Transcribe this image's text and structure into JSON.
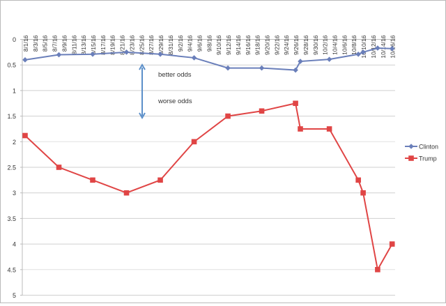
{
  "chart_data": {
    "type": "line",
    "title": "",
    "xlabel": "",
    "ylabel": "",
    "ylim": [
      0,
      5
    ],
    "y_inverted": true,
    "y_ticks": [
      "0",
      "0.5",
      "1",
      "1.5",
      "2",
      "2.5",
      "3",
      "3.5",
      "4",
      "4.5",
      "5"
    ],
    "x_tick_labels": [
      "8/1/16",
      "8/3/16",
      "8/5/16",
      "8/7/16",
      "8/9/16",
      "8/11/16",
      "8/13/16",
      "8/15/16",
      "8/17/16",
      "8/19/16",
      "8/21/16",
      "8/23/16",
      "8/25/16",
      "8/27/16",
      "8/29/16",
      "8/31/16",
      "9/2/16",
      "9/4/16",
      "9/6/16",
      "9/8/16",
      "9/10/16",
      "9/12/16",
      "9/14/16",
      "9/16/16",
      "9/18/16",
      "9/20/16",
      "9/22/16",
      "9/24/16",
      "9/26/16",
      "9/28/16",
      "9/30/16",
      "10/2/16",
      "10/4/16",
      "10/6/16",
      "10/8/16",
      "10/10/16",
      "10/12/16",
      "10/14/16",
      "10/16/16"
    ],
    "grid": true,
    "legend_position": "right",
    "series": [
      {
        "name": "Clinton",
        "color": "#6a7fba",
        "marker": "diamond",
        "points": [
          {
            "x": "8/1/16",
            "day": 0,
            "y": 0.4
          },
          {
            "x": "8/8/16",
            "day": 7,
            "y": 0.3
          },
          {
            "x": "8/15/16",
            "day": 14,
            "y": 0.29
          },
          {
            "x": "8/22/16",
            "day": 21,
            "y": 0.25
          },
          {
            "x": "8/29/16",
            "day": 28,
            "y": 0.29
          },
          {
            "x": "9/5/16",
            "day": 35,
            "y": 0.36
          },
          {
            "x": "9/12/16",
            "day": 42,
            "y": 0.56
          },
          {
            "x": "9/19/16",
            "day": 49,
            "y": 0.56
          },
          {
            "x": "9/26/16",
            "day": 56,
            "y": 0.6
          },
          {
            "x": "9/27/16",
            "day": 57,
            "y": 0.43
          },
          {
            "x": "10/3/16",
            "day": 63,
            "y": 0.39
          },
          {
            "x": "10/9/16",
            "day": 69,
            "y": 0.29
          },
          {
            "x": "10/10/16",
            "day": 70,
            "y": 0.25
          },
          {
            "x": "10/13/16",
            "day": 73,
            "y": 0.17
          },
          {
            "x": "10/16/16",
            "day": 76,
            "y": 0.18
          }
        ]
      },
      {
        "name": "Trump",
        "color": "#e04545",
        "marker": "square",
        "points": [
          {
            "x": "8/1/16",
            "day": 0,
            "y": 1.88
          },
          {
            "x": "8/8/16",
            "day": 7,
            "y": 2.5
          },
          {
            "x": "8/15/16",
            "day": 14,
            "y": 2.75
          },
          {
            "x": "8/22/16",
            "day": 21,
            "y": 3.0
          },
          {
            "x": "8/29/16",
            "day": 28,
            "y": 2.75
          },
          {
            "x": "9/5/16",
            "day": 35,
            "y": 2.0
          },
          {
            "x": "9/12/16",
            "day": 42,
            "y": 1.5
          },
          {
            "x": "9/19/16",
            "day": 49,
            "y": 1.4
          },
          {
            "x": "9/26/16",
            "day": 56,
            "y": 1.25
          },
          {
            "x": "9/27/16",
            "day": 57,
            "y": 1.75
          },
          {
            "x": "10/3/16",
            "day": 63,
            "y": 1.75
          },
          {
            "x": "10/9/16",
            "day": 69,
            "y": 2.75
          },
          {
            "x": "10/10/16",
            "day": 70,
            "y": 3.0
          },
          {
            "x": "10/13/16",
            "day": 73,
            "y": 4.5
          },
          {
            "x": "10/16/16",
            "day": 76,
            "y": 4.0
          }
        ]
      }
    ],
    "annotations": [
      {
        "text": "better odds",
        "near_y": 0.7
      },
      {
        "text": "worse odds",
        "near_y": 1.2
      }
    ]
  },
  "legend": {
    "items": [
      {
        "label": "Clinton",
        "color": "#6a7fba"
      },
      {
        "label": "Trump",
        "color": "#e04545"
      }
    ]
  },
  "annotations": {
    "better": "better odds",
    "worse": "worse odds",
    "arrow_color": "#5b8fc9"
  }
}
